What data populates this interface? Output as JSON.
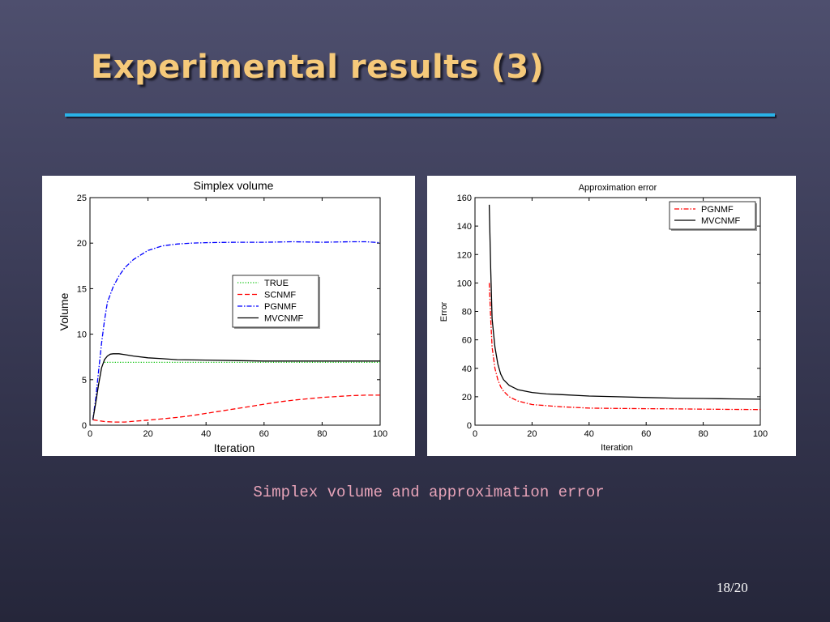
{
  "slide": {
    "title": "Experimental results (3)",
    "caption": "Simplex volume and approximation error",
    "page": "18/20",
    "colors": {
      "title": "#f5c97a",
      "rule": "#29b3e8",
      "caption": "#e7a3b8"
    }
  },
  "chart_data": [
    {
      "type": "line",
      "title": "Simplex volume",
      "xlabel": "Iteration",
      "ylabel": "Volume",
      "xlim": [
        0,
        100
      ],
      "ylim": [
        0,
        25
      ],
      "xticks": [
        0,
        20,
        40,
        60,
        80,
        100
      ],
      "yticks": [
        0,
        5,
        10,
        15,
        20,
        25
      ],
      "grid": false,
      "legend_position": "center-right",
      "series": [
        {
          "name": "TRUE",
          "color": "#00c000",
          "dash": "dotted",
          "x": [
            5,
            100
          ],
          "y": [
            6.9,
            6.9
          ]
        },
        {
          "name": "SCNMF",
          "color": "#ff0000",
          "dash": "dashed",
          "x": [
            1,
            3,
            5,
            8,
            12,
            16,
            20,
            25,
            30,
            35,
            40,
            45,
            50,
            55,
            60,
            65,
            70,
            75,
            80,
            85,
            90,
            95,
            100
          ],
          "y": [
            0.6,
            0.5,
            0.4,
            0.35,
            0.35,
            0.45,
            0.55,
            0.7,
            0.85,
            1.05,
            1.3,
            1.55,
            1.8,
            2.05,
            2.3,
            2.55,
            2.75,
            2.9,
            3.05,
            3.15,
            3.25,
            3.3,
            3.3
          ]
        },
        {
          "name": "PGNMF",
          "color": "#0000ff",
          "dash": "dashdot",
          "x": [
            1,
            2,
            3,
            4,
            5,
            6,
            8,
            10,
            12,
            15,
            18,
            20,
            25,
            30,
            35,
            40,
            50,
            60,
            70,
            80,
            90,
            95,
            100
          ],
          "y": [
            0.6,
            3,
            6,
            9,
            11.5,
            13.5,
            15.2,
            16.4,
            17.3,
            18.2,
            18.8,
            19.2,
            19.7,
            19.9,
            20,
            20.05,
            20.1,
            20.1,
            20.15,
            20.1,
            20.15,
            20.15,
            20.05
          ]
        },
        {
          "name": "MVCNMF",
          "color": "#000000",
          "dash": "solid",
          "x": [
            1,
            2,
            3,
            4,
            5,
            6,
            7,
            8,
            10,
            12,
            15,
            20,
            25,
            30,
            40,
            50,
            60,
            70,
            80,
            90,
            100
          ],
          "y": [
            0.6,
            2.5,
            4.5,
            6.3,
            7.2,
            7.6,
            7.8,
            7.85,
            7.85,
            7.75,
            7.6,
            7.4,
            7.3,
            7.2,
            7.15,
            7.1,
            7.05,
            7.05,
            7.05,
            7.05,
            7.05
          ]
        }
      ]
    },
    {
      "type": "line",
      "title": "Approximation error",
      "xlabel": "Iteration",
      "ylabel": "Error",
      "xlim": [
        0,
        100
      ],
      "ylim": [
        0,
        160
      ],
      "xticks": [
        0,
        20,
        40,
        60,
        80,
        100
      ],
      "yticks": [
        0,
        20,
        40,
        60,
        80,
        100,
        120,
        140,
        160
      ],
      "grid": false,
      "legend_position": "top-right",
      "series": [
        {
          "name": "PGNMF",
          "color": "#ff0000",
          "dash": "dashdot",
          "x": [
            5,
            5.5,
            6,
            7,
            8,
            9,
            10,
            12,
            15,
            20,
            30,
            40,
            50,
            60,
            70,
            80,
            90,
            100
          ],
          "y": [
            100,
            75,
            55,
            40,
            32,
            27,
            24,
            20,
            17,
            14.5,
            13,
            12,
            11.8,
            11.6,
            11.5,
            11.3,
            11.1,
            11
          ]
        },
        {
          "name": "MVCNMF",
          "color": "#000000",
          "dash": "solid",
          "x": [
            5,
            5.5,
            6,
            7,
            8,
            9,
            10,
            12,
            15,
            20,
            25,
            30,
            40,
            50,
            60,
            70,
            80,
            90,
            100
          ],
          "y": [
            155,
            110,
            75,
            55,
            43,
            36,
            32,
            28,
            25,
            23,
            22,
            21.5,
            20.5,
            20,
            19.5,
            19,
            18.8,
            18.5,
            18.3
          ]
        }
      ]
    }
  ]
}
